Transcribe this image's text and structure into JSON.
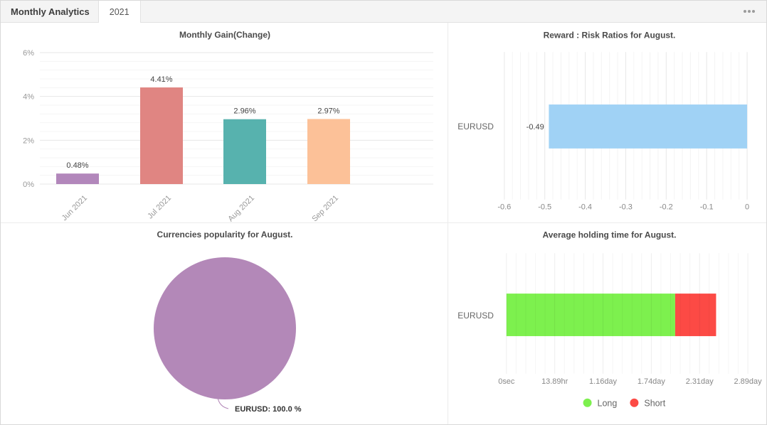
{
  "header": {
    "title": "Monthly Analytics",
    "tab": "2021",
    "menu_icon": "ellipsis-icon"
  },
  "chart_data": [
    {
      "id": "monthly-gain",
      "type": "bar",
      "title": "Monthly Gain(Change)",
      "categories": [
        "Jun 2021",
        "Jul 2021",
        "Aug 2021",
        "Sep 2021"
      ],
      "values": [
        0.48,
        4.41,
        2.96,
        2.97
      ],
      "value_labels": [
        "0.48%",
        "4.41%",
        "2.96%",
        "2.97%"
      ],
      "bar_colors": [
        "#b287bb",
        "#e08582",
        "#57b2ae",
        "#fcc198"
      ],
      "ylabel": "",
      "xlabel": "",
      "ylim": [
        0,
        6
      ],
      "y_ticks": [
        0,
        2,
        4,
        6
      ],
      "y_tick_labels": [
        "0%",
        "2%",
        "4%",
        "6%"
      ],
      "y_minor_step": 0.4,
      "grid": true
    },
    {
      "id": "risk-ratios",
      "type": "bar-horizontal",
      "title": "Reward : Risk Ratios for August.",
      "categories": [
        "EURUSD"
      ],
      "values": [
        -0.49
      ],
      "value_labels": [
        "-0.49"
      ],
      "bar_color": "#a0d2f5",
      "xlim": [
        -0.6,
        0
      ],
      "x_ticks": [
        -0.6,
        -0.5,
        -0.4,
        -0.3,
        -0.2,
        -0.1,
        0
      ],
      "x_tick_labels": [
        "-0.6",
        "-0.5",
        "-0.4",
        "-0.3",
        "-0.2",
        "-0.1",
        "0"
      ],
      "x_minor_step": 0.02,
      "grid": true
    },
    {
      "id": "currencies-popularity",
      "type": "pie",
      "title": "Currencies popularity for August.",
      "slices": [
        {
          "label": "EURUSD",
          "value": 100.0,
          "color": "#b388b8",
          "label_text": "EURUSD: 100.0 %"
        }
      ]
    },
    {
      "id": "holding-time",
      "type": "bar-horizontal-stacked",
      "title": "Average holding time for August.",
      "categories": [
        "EURUSD"
      ],
      "series": [
        {
          "name": "Long",
          "color": "#7df04e",
          "values": [
            2.02
          ]
        },
        {
          "name": "Short",
          "color": "#fc4a45",
          "values": [
            0.49
          ]
        }
      ],
      "xlim": [
        0,
        2.89
      ],
      "x_tick_labels": [
        "0sec",
        "13.89hr",
        "1.16day",
        "1.74day",
        "2.31day",
        "2.89day"
      ],
      "x_major_count": 6,
      "x_minor_per_major": 5,
      "legend": [
        "Long",
        "Short"
      ],
      "legend_position": "bottom",
      "grid": true
    }
  ]
}
